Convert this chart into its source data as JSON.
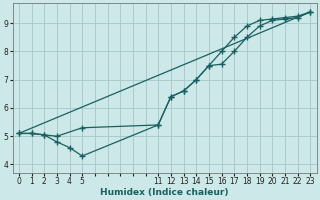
{
  "xlabel": "Humidex (Indice chaleur)",
  "bg_color": "#cce8e8",
  "grid_color": "#aacccc",
  "line_color": "#1a6060",
  "xlim": [
    -0.5,
    23.5
  ],
  "ylim": [
    3.7,
    9.7
  ],
  "xtick_positions": [
    0,
    1,
    2,
    3,
    4,
    5,
    6,
    7,
    8,
    9,
    10,
    11,
    12,
    13,
    14,
    15,
    16,
    17,
    18,
    19,
    20,
    21,
    22,
    23
  ],
  "xtick_labels": [
    "0",
    "1",
    "2",
    "3",
    "4",
    "5",
    "",
    "",
    "",
    "",
    "",
    "11",
    "12",
    "13",
    "14",
    "15",
    "16",
    "17",
    "18",
    "19",
    "20",
    "21",
    "22",
    "23"
  ],
  "yticks": [
    4,
    5,
    6,
    7,
    8,
    9
  ],
  "line1_x": [
    0,
    1,
    2,
    3,
    5,
    11,
    12,
    13,
    14,
    15,
    16,
    17,
    18,
    19,
    20,
    21,
    22,
    23
  ],
  "line1_y": [
    5.1,
    5.1,
    5.05,
    5.0,
    5.3,
    5.4,
    6.4,
    6.6,
    7.0,
    7.5,
    8.0,
    8.5,
    8.9,
    9.1,
    9.15,
    9.2,
    9.25,
    9.4
  ],
  "line2_x": [
    0,
    1,
    2,
    3,
    4,
    5,
    11,
    12,
    13,
    14,
    15,
    16,
    17,
    18,
    19,
    20,
    21,
    22,
    23
  ],
  "line2_y": [
    5.1,
    5.1,
    5.05,
    4.8,
    4.6,
    4.3,
    5.4,
    6.4,
    6.6,
    7.0,
    7.5,
    7.55,
    8.0,
    8.5,
    8.9,
    9.1,
    9.15,
    9.2,
    9.4
  ],
  "line3_x": [
    0,
    23
  ],
  "line3_y": [
    5.1,
    9.4
  ]
}
